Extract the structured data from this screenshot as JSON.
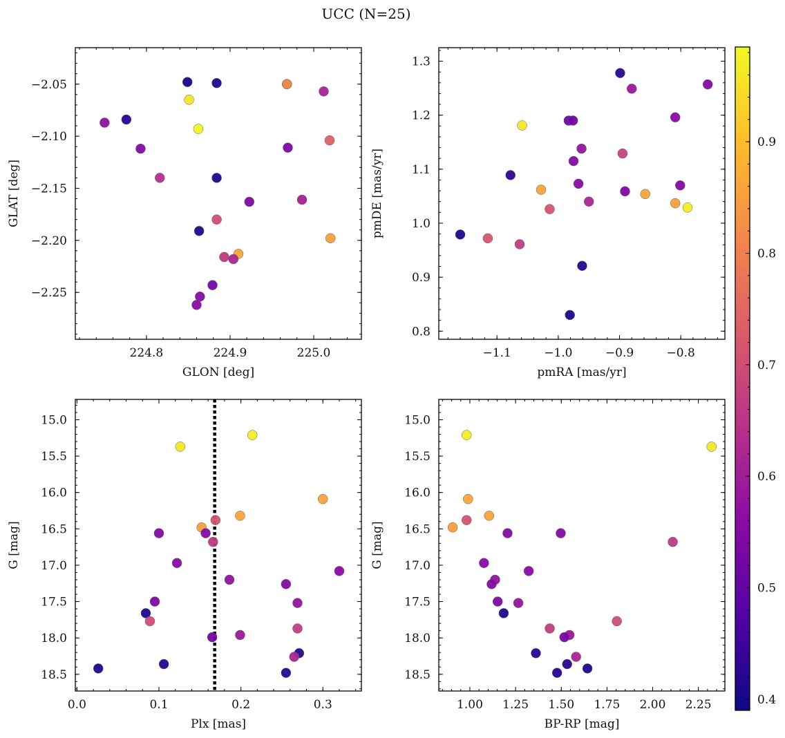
{
  "figure": {
    "title": "UCC (N=25)"
  },
  "colorbar": {
    "colormap": "plasma",
    "vmin": 0.39,
    "vmax": 0.985,
    "ticks": [
      0.4,
      0.5,
      0.6,
      0.7,
      0.8,
      0.9
    ],
    "tick_labels": [
      "0.4",
      "0.5",
      "0.6",
      "0.7",
      "0.8",
      "0.9"
    ],
    "colors": [
      "#0d0887",
      "#5302a3",
      "#8b0aa5",
      "#b83289",
      "#db5c68",
      "#f48849",
      "#febd2a",
      "#f0f921"
    ]
  },
  "chart_data": [
    {
      "type": "scatter",
      "xlabel": "GLON [deg]",
      "ylabel": "GLAT [deg]",
      "xlim": [
        224.715,
        225.057
      ],
      "ylim": [
        -2.295,
        -2.015
      ],
      "x_ticks": [
        224.8,
        224.9,
        225.0
      ],
      "x_tick_labels": [
        "224.8",
        "224.9",
        "225.0"
      ],
      "y_ticks": [
        -2.05,
        -2.1,
        -2.15,
        -2.2,
        -2.25
      ],
      "y_tick_labels": [
        "−2.05",
        "−2.10",
        "−2.15",
        "−2.20",
        "−2.25"
      ],
      "invert_y": false,
      "points": [
        {
          "x": 224.849,
          "y": -2.048,
          "c": 0.4
        },
        {
          "x": 224.884,
          "y": -2.049,
          "c": 0.41
        },
        {
          "x": 224.968,
          "y": -2.05,
          "c": 0.41
        },
        {
          "x": 224.968,
          "y": -2.05,
          "c": 0.83
        },
        {
          "x": 225.012,
          "y": -2.057,
          "c": 0.61
        },
        {
          "x": 224.851,
          "y": -2.065,
          "c": 0.96
        },
        {
          "x": 224.75,
          "y": -2.087,
          "c": 0.57
        },
        {
          "x": 224.776,
          "y": -2.084,
          "c": 0.42
        },
        {
          "x": 224.862,
          "y": -2.093,
          "c": 0.98
        },
        {
          "x": 224.793,
          "y": -2.112,
          "c": 0.55
        },
        {
          "x": 224.969,
          "y": -2.111,
          "c": 0.54
        },
        {
          "x": 225.019,
          "y": -2.104,
          "c": 0.74
        },
        {
          "x": 224.816,
          "y": -2.14,
          "c": 0.64
        },
        {
          "x": 224.884,
          "y": -2.14,
          "c": 0.41
        },
        {
          "x": 224.923,
          "y": -2.163,
          "c": 0.54
        },
        {
          "x": 224.986,
          "y": -2.161,
          "c": 0.61
        },
        {
          "x": 224.884,
          "y": -2.18,
          "c": 0.7
        },
        {
          "x": 224.863,
          "y": -2.191,
          "c": 0.42
        },
        {
          "x": 225.02,
          "y": -2.198,
          "c": 0.85
        },
        {
          "x": 224.91,
          "y": -2.213,
          "c": 0.86
        },
        {
          "x": 224.893,
          "y": -2.216,
          "c": 0.66
        },
        {
          "x": 224.904,
          "y": -2.218,
          "c": 0.62
        },
        {
          "x": 224.879,
          "y": -2.243,
          "c": 0.53
        },
        {
          "x": 224.864,
          "y": -2.254,
          "c": 0.55
        },
        {
          "x": 224.86,
          "y": -2.262,
          "c": 0.56
        }
      ]
    },
    {
      "type": "scatter",
      "xlabel": "pmRA [mas/yr]",
      "ylabel": "pmDE [mas/yr]",
      "xlim": [
        -1.195,
        -0.728
      ],
      "ylim": [
        0.785,
        1.325
      ],
      "x_ticks": [
        -1.1,
        -1.0,
        -0.9,
        -0.8
      ],
      "x_tick_labels": [
        "−1.1",
        "−1.0",
        "−0.9",
        "−0.8"
      ],
      "y_ticks": [
        0.8,
        0.9,
        1.0,
        1.1,
        1.2,
        1.3
      ],
      "y_tick_labels": [
        "0.8",
        "0.9",
        "1.0",
        "1.1",
        "1.2",
        "1.3"
      ],
      "invert_y": false,
      "points": [
        {
          "x": -0.899,
          "y": 1.278,
          "c": 0.42
        },
        {
          "x": -0.756,
          "y": 1.257,
          "c": 0.55
        },
        {
          "x": -0.88,
          "y": 1.249,
          "c": 0.59
        },
        {
          "x": -0.809,
          "y": 1.196,
          "c": 0.56
        },
        {
          "x": -0.983,
          "y": 1.19,
          "c": 0.52
        },
        {
          "x": -0.976,
          "y": 1.19,
          "c": 0.52
        },
        {
          "x": -1.059,
          "y": 1.181,
          "c": 0.96
        },
        {
          "x": -0.962,
          "y": 1.138,
          "c": 0.58
        },
        {
          "x": -0.895,
          "y": 1.129,
          "c": 0.68
        },
        {
          "x": -0.975,
          "y": 1.115,
          "c": 0.55
        },
        {
          "x": -1.078,
          "y": 1.089,
          "c": 0.43
        },
        {
          "x": -0.967,
          "y": 1.073,
          "c": 0.56
        },
        {
          "x": -0.801,
          "y": 1.07,
          "c": 0.55
        },
        {
          "x": -1.028,
          "y": 1.062,
          "c": 0.86
        },
        {
          "x": -0.891,
          "y": 1.059,
          "c": 0.54
        },
        {
          "x": -0.858,
          "y": 1.054,
          "c": 0.86
        },
        {
          "x": -0.95,
          "y": 1.04,
          "c": 0.62
        },
        {
          "x": -0.809,
          "y": 1.037,
          "c": 0.85
        },
        {
          "x": -0.789,
          "y": 1.029,
          "c": 0.97
        },
        {
          "x": -1.014,
          "y": 1.026,
          "c": 0.71
        },
        {
          "x": -1.16,
          "y": 0.979,
          "c": 0.41
        },
        {
          "x": -1.115,
          "y": 0.972,
          "c": 0.72
        },
        {
          "x": -1.063,
          "y": 0.961,
          "c": 0.67
        },
        {
          "x": -0.961,
          "y": 0.921,
          "c": 0.42
        },
        {
          "x": -0.981,
          "y": 0.83,
          "c": 0.41
        }
      ]
    },
    {
      "type": "scatter",
      "xlabel": "Plx [mas]",
      "ylabel": "G [mag]",
      "xlim": [
        -0.002,
        0.347
      ],
      "ylim": [
        18.73,
        14.72
      ],
      "x_ticks": [
        0.0,
        0.1,
        0.2,
        0.3
      ],
      "x_tick_labels": [
        "0.0",
        "0.1",
        "0.2",
        "0.3"
      ],
      "y_ticks": [
        15.0,
        15.5,
        16.0,
        16.5,
        17.0,
        17.5,
        18.0,
        18.5
      ],
      "y_tick_labels": [
        "15.0",
        "15.5",
        "16.0",
        "16.5",
        "17.0",
        "17.5",
        "18.0",
        "18.5"
      ],
      "invert_y": true,
      "vline": {
        "x": 0.168,
        "style": "dotted"
      },
      "points": [
        {
          "x": 0.214,
          "y": 15.21,
          "c": 0.97
        },
        {
          "x": 0.126,
          "y": 15.37,
          "c": 0.96
        },
        {
          "x": 0.3,
          "y": 16.09,
          "c": 0.86
        },
        {
          "x": 0.199,
          "y": 16.32,
          "c": 0.86
        },
        {
          "x": 0.169,
          "y": 16.38,
          "c": 0.71
        },
        {
          "x": 0.152,
          "y": 16.48,
          "c": 0.85
        },
        {
          "x": 0.157,
          "y": 16.56,
          "c": 0.55
        },
        {
          "x": 0.1,
          "y": 16.56,
          "c": 0.55
        },
        {
          "x": 0.166,
          "y": 16.68,
          "c": 0.66
        },
        {
          "x": 0.122,
          "y": 16.97,
          "c": 0.56
        },
        {
          "x": 0.32,
          "y": 17.08,
          "c": 0.56
        },
        {
          "x": 0.186,
          "y": 17.2,
          "c": 0.58
        },
        {
          "x": 0.255,
          "y": 17.26,
          "c": 0.55
        },
        {
          "x": 0.095,
          "y": 17.5,
          "c": 0.54
        },
        {
          "x": 0.269,
          "y": 17.52,
          "c": 0.58
        },
        {
          "x": 0.084,
          "y": 17.66,
          "c": 0.41
        },
        {
          "x": 0.089,
          "y": 17.77,
          "c": 0.7
        },
        {
          "x": 0.269,
          "y": 17.87,
          "c": 0.67
        },
        {
          "x": 0.199,
          "y": 17.96,
          "c": 0.59
        },
        {
          "x": 0.165,
          "y": 17.99,
          "c": 0.53
        },
        {
          "x": 0.271,
          "y": 18.21,
          "c": 0.42
        },
        {
          "x": 0.265,
          "y": 18.26,
          "c": 0.62
        },
        {
          "x": 0.106,
          "y": 18.36,
          "c": 0.42
        },
        {
          "x": 0.026,
          "y": 18.42,
          "c": 0.41
        },
        {
          "x": 0.255,
          "y": 18.48,
          "c": 0.42
        }
      ]
    },
    {
      "type": "scatter",
      "xlabel": "BP-RP [mag]",
      "ylabel": "G [mag]",
      "xlim": [
        0.83,
        2.395
      ],
      "ylim": [
        18.73,
        14.72
      ],
      "x_ticks": [
        1.0,
        1.25,
        1.5,
        1.75,
        2.0,
        2.25
      ],
      "x_tick_labels": [
        "1.00",
        "1.25",
        "1.50",
        "1.75",
        "2.00",
        "2.25"
      ],
      "y_ticks": [
        15.0,
        15.5,
        16.0,
        16.5,
        17.0,
        17.5,
        18.0,
        18.5
      ],
      "y_tick_labels": [
        "15.0",
        "15.5",
        "16.0",
        "16.5",
        "17.0",
        "17.5",
        "18.0",
        "18.5"
      ],
      "invert_y": true,
      "points": [
        {
          "x": 0.982,
          "y": 15.21,
          "c": 0.97
        },
        {
          "x": 2.322,
          "y": 15.37,
          "c": 0.96
        },
        {
          "x": 0.99,
          "y": 16.09,
          "c": 0.86
        },
        {
          "x": 1.105,
          "y": 16.32,
          "c": 0.86
        },
        {
          "x": 0.982,
          "y": 16.38,
          "c": 0.71
        },
        {
          "x": 0.906,
          "y": 16.48,
          "c": 0.85
        },
        {
          "x": 1.206,
          "y": 16.56,
          "c": 0.55
        },
        {
          "x": 1.497,
          "y": 16.56,
          "c": 0.55
        },
        {
          "x": 2.11,
          "y": 16.68,
          "c": 0.66
        },
        {
          "x": 1.077,
          "y": 16.97,
          "c": 0.56
        },
        {
          "x": 1.322,
          "y": 17.08,
          "c": 0.56
        },
        {
          "x": 1.138,
          "y": 17.2,
          "c": 0.58
        },
        {
          "x": 1.119,
          "y": 17.26,
          "c": 0.55
        },
        {
          "x": 1.152,
          "y": 17.5,
          "c": 0.54
        },
        {
          "x": 1.265,
          "y": 17.52,
          "c": 0.58
        },
        {
          "x": 1.185,
          "y": 17.66,
          "c": 0.41
        },
        {
          "x": 1.804,
          "y": 17.77,
          "c": 0.7
        },
        {
          "x": 1.437,
          "y": 17.87,
          "c": 0.67
        },
        {
          "x": 1.545,
          "y": 17.96,
          "c": 0.59
        },
        {
          "x": 1.517,
          "y": 17.99,
          "c": 0.53
        },
        {
          "x": 1.361,
          "y": 18.21,
          "c": 0.42
        },
        {
          "x": 1.581,
          "y": 18.26,
          "c": 0.62
        },
        {
          "x": 1.532,
          "y": 18.36,
          "c": 0.42
        },
        {
          "x": 1.643,
          "y": 18.42,
          "c": 0.41
        },
        {
          "x": 1.477,
          "y": 18.48,
          "c": 0.42
        }
      ]
    }
  ]
}
